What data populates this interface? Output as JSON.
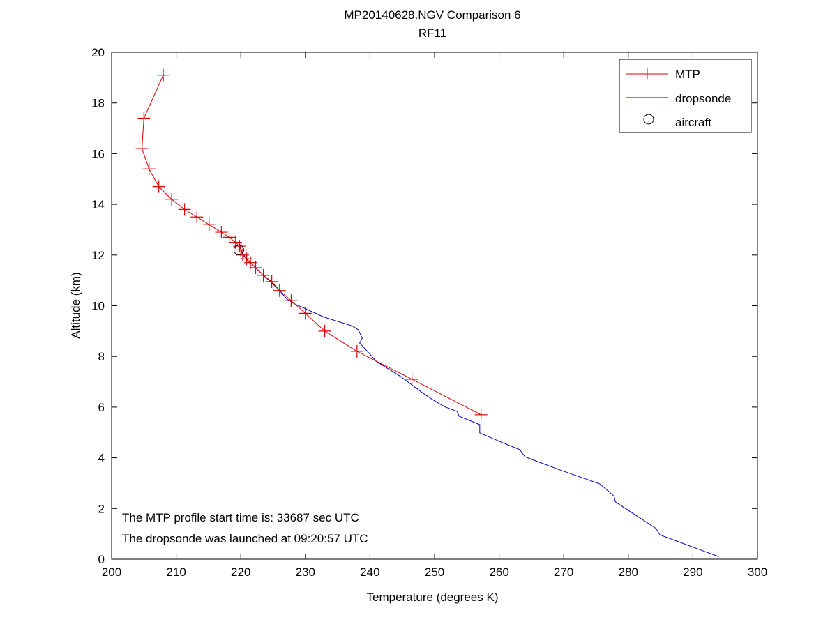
{
  "chart_data": {
    "type": "line",
    "title": "MP20140628.NGV Comparison 6",
    "subtitle": "RF11",
    "xlabel": "Temperature (degrees K)",
    "ylabel": "Altitude (km)",
    "xlim": [
      200,
      300
    ],
    "ylim": [
      0,
      20
    ],
    "xticks": [
      "200",
      "210",
      "220",
      "230",
      "240",
      "250",
      "260",
      "270",
      "280",
      "290",
      "300"
    ],
    "yticks": [
      "0",
      "2",
      "4",
      "6",
      "8",
      "10",
      "12",
      "14",
      "16",
      "18",
      "20"
    ],
    "grid": false,
    "legend_position": "top-right",
    "legend": [
      "MTP",
      "dropsonde",
      "aircraft"
    ],
    "colors": {
      "mtp": "#e00000",
      "dropsonde": "#0000c0",
      "aircraft": "#000000"
    },
    "series": [
      {
        "name": "MTP",
        "marker": "plus",
        "points": [
          [
            208.0,
            19.1
          ],
          [
            205.0,
            17.4
          ],
          [
            204.7,
            16.2
          ],
          [
            205.8,
            15.4
          ],
          [
            207.3,
            14.7
          ],
          [
            209.3,
            14.2
          ],
          [
            211.3,
            13.8
          ],
          [
            213.2,
            13.5
          ],
          [
            215.1,
            13.2
          ],
          [
            217.0,
            12.9
          ],
          [
            218.2,
            12.7
          ],
          [
            219.2,
            12.5
          ],
          [
            219.8,
            12.35
          ],
          [
            220.0,
            12.2
          ],
          [
            220.3,
            12.0
          ],
          [
            220.9,
            11.85
          ],
          [
            221.5,
            11.7
          ],
          [
            222.3,
            11.5
          ],
          [
            223.5,
            11.2
          ],
          [
            224.8,
            10.95
          ],
          [
            226.0,
            10.6
          ],
          [
            227.8,
            10.2
          ],
          [
            230.0,
            9.7
          ],
          [
            233.0,
            9.0
          ],
          [
            238.0,
            8.2
          ],
          [
            246.5,
            7.1
          ],
          [
            257.2,
            5.7
          ]
        ]
      },
      {
        "name": "dropsonde",
        "marker": "none",
        "points": [
          [
            219.8,
            12.4
          ],
          [
            220.2,
            12.1
          ],
          [
            221.0,
            11.8
          ],
          [
            222.3,
            11.5
          ],
          [
            223.5,
            11.2
          ],
          [
            224.8,
            10.9
          ],
          [
            226.0,
            10.6
          ],
          [
            227.0,
            10.3
          ],
          [
            228.1,
            10.1
          ],
          [
            232.9,
            9.55
          ],
          [
            237.3,
            9.2
          ],
          [
            238.2,
            9.05
          ],
          [
            238.8,
            8.72
          ],
          [
            238.4,
            8.53
          ],
          [
            238.9,
            8.4
          ],
          [
            241.0,
            7.8
          ],
          [
            244.8,
            7.2
          ],
          [
            248.1,
            6.57
          ],
          [
            249.5,
            6.33
          ],
          [
            251.5,
            6.02
          ],
          [
            253.5,
            5.83
          ],
          [
            253.8,
            5.64
          ],
          [
            257.0,
            5.31
          ],
          [
            257.0,
            4.98
          ],
          [
            260.5,
            4.6
          ],
          [
            263.2,
            4.32
          ],
          [
            264.0,
            4.04
          ],
          [
            269.1,
            3.55
          ],
          [
            275.6,
            2.97
          ],
          [
            277.0,
            2.67
          ],
          [
            277.8,
            2.48
          ],
          [
            278.0,
            2.26
          ],
          [
            284.3,
            1.21
          ],
          [
            284.9,
            0.96
          ],
          [
            294.0,
            0.1
          ]
        ]
      },
      {
        "name": "aircraft",
        "marker": "circle",
        "points": [
          [
            219.7,
            12.2
          ]
        ]
      }
    ],
    "annotations": [
      "The MTP profile start time is: 33687 sec UTC",
      "The dropsonde was launched at 09:20:57 UTC"
    ]
  }
}
